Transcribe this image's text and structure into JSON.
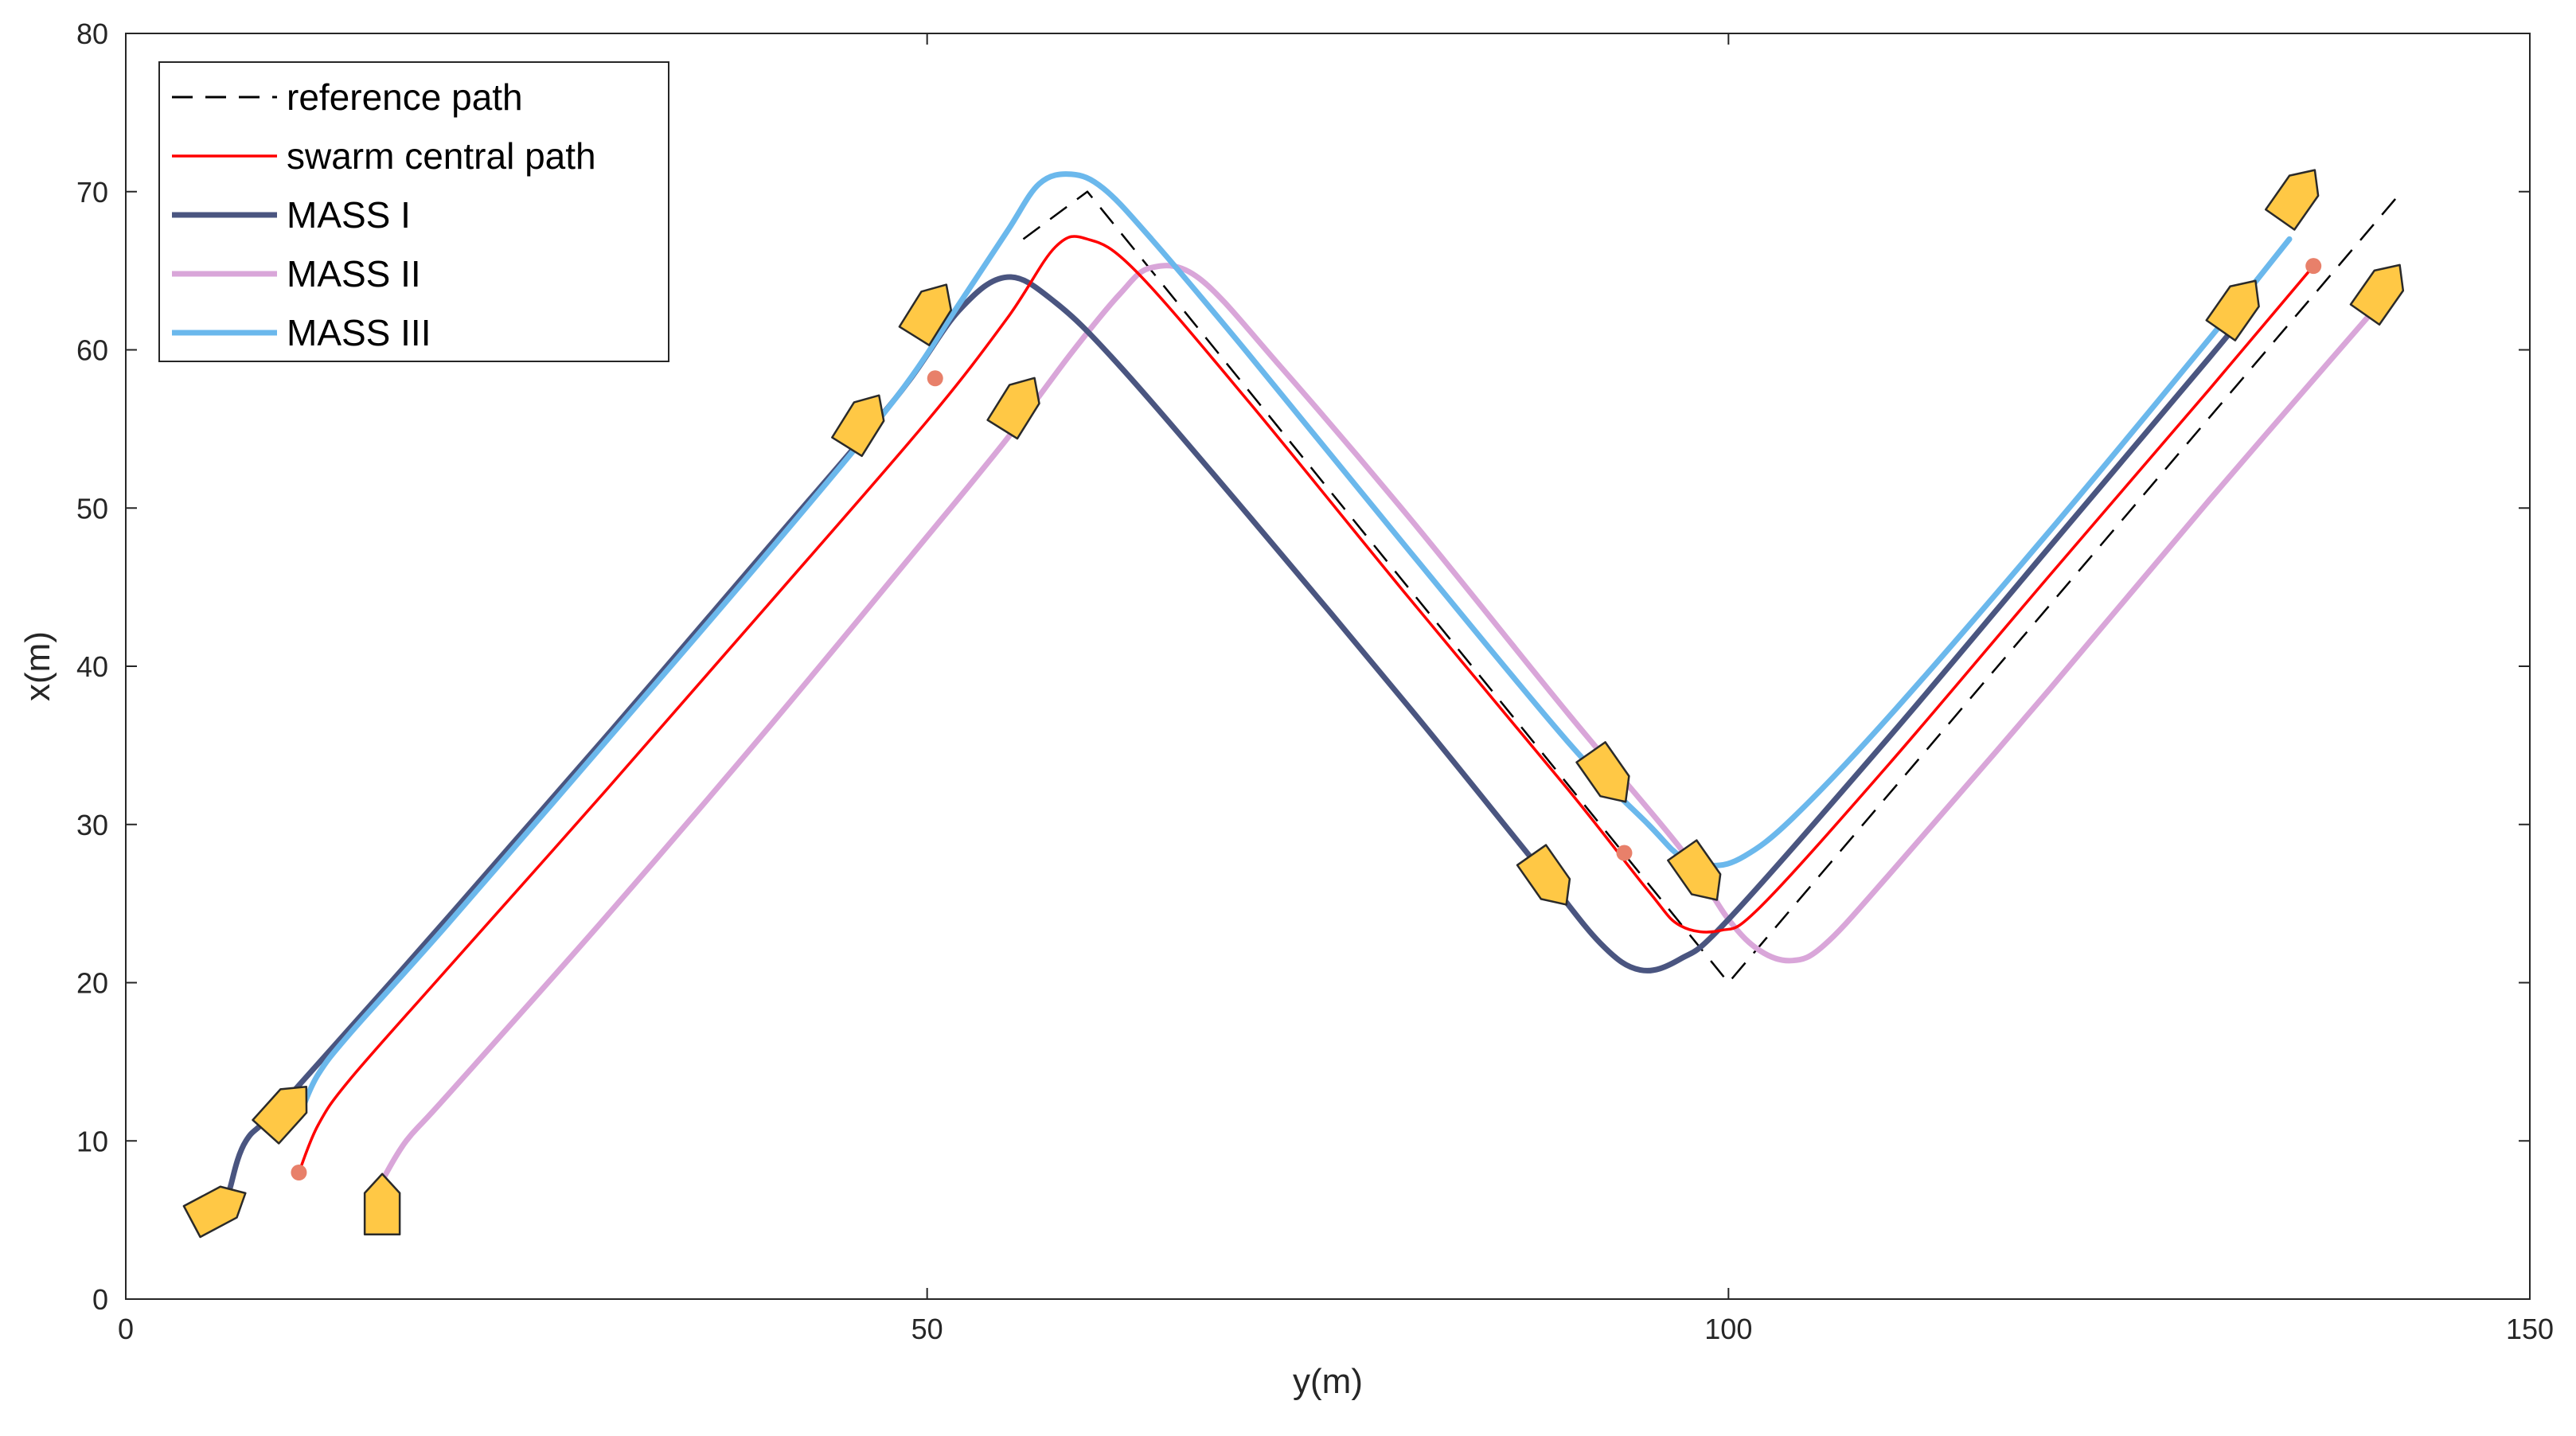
{
  "chart_data": {
    "type": "line",
    "title": "",
    "xlabel": "y(m)",
    "ylabel": "x(m)",
    "xlim": [
      0,
      150
    ],
    "ylim": [
      0,
      80
    ],
    "x_ticks": [
      0,
      50,
      100,
      150
    ],
    "x_tick_labels": [
      "0",
      "50",
      "100",
      "150"
    ],
    "y_ticks": [
      0,
      10,
      20,
      30,
      40,
      50,
      60,
      70,
      80
    ],
    "y_tick_labels": [
      "0",
      "10",
      "20",
      "30",
      "40",
      "50",
      "60",
      "70",
      "80"
    ],
    "grid": false,
    "legend_position": "top-left",
    "colors": {
      "reference": "#000000",
      "central": "#ff0000",
      "mass1": "#4a5580",
      "mass2": "#d9a6d9",
      "mass3": "#6bb8ec",
      "ship_fill": "#ffc845",
      "ship_stroke": "#2a2a2a",
      "marker": "#e8806a"
    },
    "series": [
      {
        "name": "reference path",
        "style": "dashed",
        "points": [
          [
            56,
            67
          ],
          [
            60,
            70
          ],
          [
            68,
            60
          ],
          [
            100,
            20
          ],
          [
            142,
            70
          ]
        ]
      },
      {
        "name": "swarm central path",
        "style": "solid",
        "points": [
          [
            10.8,
            8
          ],
          [
            12,
            11
          ],
          [
            14,
            13.9
          ],
          [
            20,
            20.8
          ],
          [
            30,
            32.2
          ],
          [
            40,
            43.8
          ],
          [
            50,
            55.5
          ],
          [
            55,
            62
          ],
          [
            58,
            66.5
          ],
          [
            60,
            67
          ],
          [
            63,
            65
          ],
          [
            70,
            56.8
          ],
          [
            80,
            44.4
          ],
          [
            90,
            32.2
          ],
          [
            95,
            25.8
          ],
          [
            97,
            23.6
          ],
          [
            99.5,
            23.3
          ],
          [
            102,
            24.8
          ],
          [
            110,
            33.8
          ],
          [
            120,
            45.7
          ],
          [
            130,
            57.5
          ],
          [
            136.5,
            65.3
          ]
        ]
      },
      {
        "name": "MASS I",
        "style": "solid",
        "points": [
          [
            6.5,
            7
          ],
          [
            7.5,
            10
          ],
          [
            10,
            12.6
          ],
          [
            20,
            24
          ],
          [
            30,
            35.6
          ],
          [
            40,
            47.4
          ],
          [
            48,
            56.9
          ],
          [
            52,
            62.5
          ],
          [
            55,
            64.6
          ],
          [
            58,
            63
          ],
          [
            62,
            59
          ],
          [
            70,
            49.6
          ],
          [
            80,
            37.5
          ],
          [
            88,
            27.5
          ],
          [
            92,
            22.5
          ],
          [
            94.5,
            20.8
          ],
          [
            97,
            21.5
          ],
          [
            100,
            24
          ],
          [
            110,
            35.5
          ],
          [
            120,
            47.5
          ],
          [
            130,
            59.5
          ],
          [
            132,
            62
          ]
        ]
      },
      {
        "name": "MASS II",
        "style": "solid",
        "points": [
          [
            16,
            7.5
          ],
          [
            17.5,
            10
          ],
          [
            20,
            12.8
          ],
          [
            30,
            24.2
          ],
          [
            40,
            36
          ],
          [
            50,
            48.2
          ],
          [
            55,
            54.4
          ],
          [
            59,
            59.8
          ],
          [
            62,
            63.5
          ],
          [
            64,
            65.2
          ],
          [
            67,
            64.5
          ],
          [
            72,
            59
          ],
          [
            80,
            49.5
          ],
          [
            90,
            37
          ],
          [
            97,
            28.5
          ],
          [
            100,
            24
          ],
          [
            102,
            22
          ],
          [
            104,
            21.4
          ],
          [
            106,
            22.4
          ],
          [
            110,
            26.8
          ],
          [
            120,
            38.5
          ],
          [
            130,
            50.5
          ],
          [
            140,
            62.2
          ],
          [
            141.5,
            64
          ]
        ]
      },
      {
        "name": "MASS III",
        "style": "solid",
        "points": [
          [
            11,
            12
          ],
          [
            12,
            14.2
          ],
          [
            14,
            16.8
          ],
          [
            20,
            23.6
          ],
          [
            30,
            35.3
          ],
          [
            40,
            47.1
          ],
          [
            48,
            56.9
          ],
          [
            52,
            62.9
          ],
          [
            55,
            67.5
          ],
          [
            57,
            70.5
          ],
          [
            59,
            71.1
          ],
          [
            61,
            70.2
          ],
          [
            64,
            67
          ],
          [
            70,
            59.8
          ],
          [
            80,
            47.4
          ],
          [
            90,
            35.2
          ],
          [
            95,
            30
          ],
          [
            97,
            28
          ],
          [
            99,
            27.4
          ],
          [
            101,
            28
          ],
          [
            104,
            30.4
          ],
          [
            110,
            36.8
          ],
          [
            120,
            48.5
          ],
          [
            130,
            60.7
          ],
          [
            135,
            67
          ]
        ]
      }
    ],
    "markers": [
      [
        10.8,
        8
      ],
      [
        50.5,
        58.2
      ],
      [
        93.5,
        28.2
      ],
      [
        136.5,
        65.3
      ]
    ],
    "ships": [
      {
        "x": 5.8,
        "y": 5.8,
        "heading": 62
      },
      {
        "x": 10,
        "y": 12,
        "heading": 42
      },
      {
        "x": 16,
        "y": 6,
        "heading": 0
      },
      {
        "x": 46,
        "y": 55.5,
        "heading": 32
      },
      {
        "x": 50.2,
        "y": 62.5,
        "heading": 32
      },
      {
        "x": 55.7,
        "y": 56.6,
        "heading": 32
      },
      {
        "x": 88.8,
        "y": 26.5,
        "heading": 145
      },
      {
        "x": 92.5,
        "y": 33,
        "heading": 145
      },
      {
        "x": 98.2,
        "y": 26.8,
        "heading": 145
      },
      {
        "x": 131.8,
        "y": 62.8,
        "heading": 35
      },
      {
        "x": 135.5,
        "y": 69.8,
        "heading": 35
      },
      {
        "x": 140.8,
        "y": 63.8,
        "heading": 35
      }
    ]
  }
}
